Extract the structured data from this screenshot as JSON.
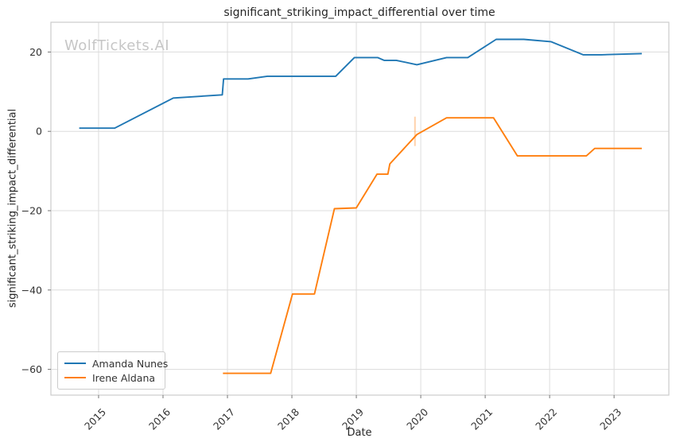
{
  "watermark": "WolfTickets.AI",
  "chart_data": {
    "type": "line",
    "title": "significant_striking_impact_differential over time",
    "xlabel": "Date",
    "ylabel": "significant_striking_impact_differential",
    "x_range": [
      2014.26,
      2023.85
    ],
    "y_range": [
      -66.5,
      27.5
    ],
    "x_ticks": [
      2015,
      2016,
      2017,
      2018,
      2019,
      2020,
      2021,
      2022,
      2023
    ],
    "y_ticks": [
      20,
      0,
      -20,
      -40,
      -60
    ],
    "grid": true,
    "grid_color": "#dcdcdc",
    "border_color": "#cccccc",
    "tick_color": "#767676",
    "legend_position": "lower left",
    "series": [
      {
        "name": "Amanda Nunes",
        "color": "#1f77b4",
        "points": [
          [
            2014.7,
            0.8
          ],
          [
            2015.25,
            0.8
          ],
          [
            2016.16,
            8.4
          ],
          [
            2016.92,
            9.2
          ],
          [
            2016.94,
            13.2
          ],
          [
            2017.32,
            13.2
          ],
          [
            2017.62,
            13.9
          ],
          [
            2018.68,
            13.9
          ],
          [
            2018.97,
            18.6
          ],
          [
            2019.33,
            18.6
          ],
          [
            2019.43,
            17.9
          ],
          [
            2019.62,
            17.9
          ],
          [
            2019.94,
            16.8
          ],
          [
            2020.4,
            18.6
          ],
          [
            2020.73,
            18.6
          ],
          [
            2021.17,
            23.2
          ],
          [
            2021.6,
            23.2
          ],
          [
            2022.02,
            22.6
          ],
          [
            2022.52,
            19.3
          ],
          [
            2022.8,
            19.3
          ],
          [
            2023.43,
            19.6
          ]
        ]
      },
      {
        "name": "Irene Aldana",
        "color": "#ff7f0e",
        "points": [
          [
            2016.93,
            -61.0
          ],
          [
            2017.67,
            -61.0
          ],
          [
            2018.01,
            -41.0
          ],
          [
            2018.35,
            -41.0
          ],
          [
            2018.66,
            -19.5
          ],
          [
            2019.0,
            -19.3
          ],
          [
            2019.32,
            -10.8
          ],
          [
            2019.49,
            -10.8
          ],
          [
            2019.52,
            -8.2
          ],
          [
            2019.94,
            -0.8
          ],
          [
            2020.4,
            3.4
          ],
          [
            2021.13,
            3.4
          ],
          [
            2021.5,
            -6.2
          ],
          [
            2022.57,
            -6.2
          ],
          [
            2022.7,
            -4.3
          ],
          [
            2023.43,
            -4.3
          ]
        ]
      }
    ],
    "annotations": [
      {
        "type": "vline",
        "x": 2019.91,
        "y_from": -3.7,
        "y_to": 3.7,
        "color": "rgba(255,127,14,0.35)"
      }
    ]
  }
}
